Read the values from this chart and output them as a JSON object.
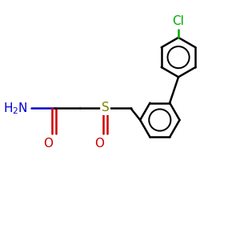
{
  "bg_color": "#ffffff",
  "atom_colors": {
    "C": "#000000",
    "N": "#0000cc",
    "O": "#cc0000",
    "S": "#808000",
    "Cl": "#00aa00"
  },
  "bond_color": "#000000",
  "bond_width": 1.8,
  "figsize": [
    3.0,
    3.0
  ],
  "dpi": 100
}
